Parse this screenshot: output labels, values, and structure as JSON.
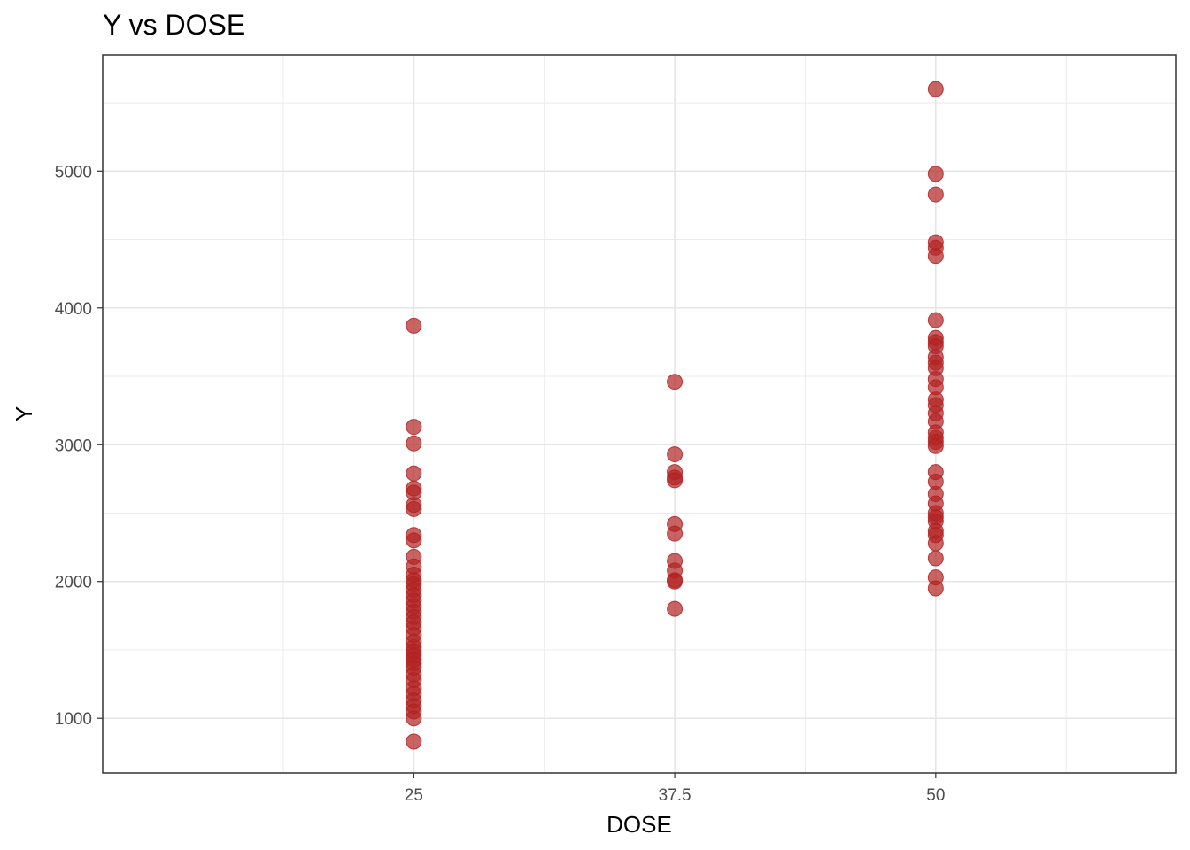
{
  "chart_data": {
    "type": "scatter",
    "title": "Y vs DOSE",
    "xlabel": "DOSE",
    "ylabel": "Y",
    "x_ticks": [
      25,
      37.5,
      50
    ],
    "x_tick_labels": [
      "25",
      "37.5",
      "50"
    ],
    "xlim": [
      10.1,
      61.5
    ],
    "y_ticks": [
      1000,
      2000,
      3000,
      4000,
      5000
    ],
    "y_tick_labels": [
      "1000",
      "2000",
      "3000",
      "4000",
      "5000"
    ],
    "ylim": [
      600,
      5850
    ],
    "grid": true,
    "point_color": "#b22222",
    "point_opacity": 0.7,
    "series": [
      {
        "points": [
          {
            "x": 25,
            "y": 3870
          },
          {
            "x": 25,
            "y": 3130
          },
          {
            "x": 25,
            "y": 3010
          },
          {
            "x": 25,
            "y": 2790
          },
          {
            "x": 25,
            "y": 2680
          },
          {
            "x": 25,
            "y": 2650
          },
          {
            "x": 25,
            "y": 2560
          },
          {
            "x": 25,
            "y": 2530
          },
          {
            "x": 25,
            "y": 2340
          },
          {
            "x": 25,
            "y": 2300
          },
          {
            "x": 25,
            "y": 2180
          },
          {
            "x": 25,
            "y": 2110
          },
          {
            "x": 25,
            "y": 2050
          },
          {
            "x": 25,
            "y": 2010
          },
          {
            "x": 25,
            "y": 1980
          },
          {
            "x": 25,
            "y": 1940
          },
          {
            "x": 25,
            "y": 1900
          },
          {
            "x": 25,
            "y": 1860
          },
          {
            "x": 25,
            "y": 1820
          },
          {
            "x": 25,
            "y": 1780
          },
          {
            "x": 25,
            "y": 1740
          },
          {
            "x": 25,
            "y": 1700
          },
          {
            "x": 25,
            "y": 1660
          },
          {
            "x": 25,
            "y": 1610
          },
          {
            "x": 25,
            "y": 1560
          },
          {
            "x": 25,
            "y": 1520
          },
          {
            "x": 25,
            "y": 1490
          },
          {
            "x": 25,
            "y": 1460
          },
          {
            "x": 25,
            "y": 1430
          },
          {
            "x": 25,
            "y": 1400
          },
          {
            "x": 25,
            "y": 1370
          },
          {
            "x": 25,
            "y": 1320
          },
          {
            "x": 25,
            "y": 1280
          },
          {
            "x": 25,
            "y": 1220
          },
          {
            "x": 25,
            "y": 1180
          },
          {
            "x": 25,
            "y": 1130
          },
          {
            "x": 25,
            "y": 1090
          },
          {
            "x": 25,
            "y": 1050
          },
          {
            "x": 25,
            "y": 1000
          },
          {
            "x": 25,
            "y": 830
          },
          {
            "x": 37.5,
            "y": 3460
          },
          {
            "x": 37.5,
            "y": 2930
          },
          {
            "x": 37.5,
            "y": 2800
          },
          {
            "x": 37.5,
            "y": 2760
          },
          {
            "x": 37.5,
            "y": 2740
          },
          {
            "x": 37.5,
            "y": 2420
          },
          {
            "x": 37.5,
            "y": 2350
          },
          {
            "x": 37.5,
            "y": 2150
          },
          {
            "x": 37.5,
            "y": 2080
          },
          {
            "x": 37.5,
            "y": 2010
          },
          {
            "x": 37.5,
            "y": 2000
          },
          {
            "x": 37.5,
            "y": 1800
          },
          {
            "x": 50,
            "y": 5600
          },
          {
            "x": 50,
            "y": 4980
          },
          {
            "x": 50,
            "y": 4830
          },
          {
            "x": 50,
            "y": 4480
          },
          {
            "x": 50,
            "y": 4440
          },
          {
            "x": 50,
            "y": 4380
          },
          {
            "x": 50,
            "y": 3910
          },
          {
            "x": 50,
            "y": 3780
          },
          {
            "x": 50,
            "y": 3750
          },
          {
            "x": 50,
            "y": 3720
          },
          {
            "x": 50,
            "y": 3640
          },
          {
            "x": 50,
            "y": 3600
          },
          {
            "x": 50,
            "y": 3560
          },
          {
            "x": 50,
            "y": 3480
          },
          {
            "x": 50,
            "y": 3420
          },
          {
            "x": 50,
            "y": 3330
          },
          {
            "x": 50,
            "y": 3290
          },
          {
            "x": 50,
            "y": 3230
          },
          {
            "x": 50,
            "y": 3170
          },
          {
            "x": 50,
            "y": 3090
          },
          {
            "x": 50,
            "y": 3050
          },
          {
            "x": 50,
            "y": 3020
          },
          {
            "x": 50,
            "y": 2990
          },
          {
            "x": 50,
            "y": 2800
          },
          {
            "x": 50,
            "y": 2730
          },
          {
            "x": 50,
            "y": 2640
          },
          {
            "x": 50,
            "y": 2570
          },
          {
            "x": 50,
            "y": 2500
          },
          {
            "x": 50,
            "y": 2470
          },
          {
            "x": 50,
            "y": 2440
          },
          {
            "x": 50,
            "y": 2370
          },
          {
            "x": 50,
            "y": 2340
          },
          {
            "x": 50,
            "y": 2280
          },
          {
            "x": 50,
            "y": 2170
          },
          {
            "x": 50,
            "y": 2030
          },
          {
            "x": 50,
            "y": 1950
          }
        ]
      }
    ]
  }
}
